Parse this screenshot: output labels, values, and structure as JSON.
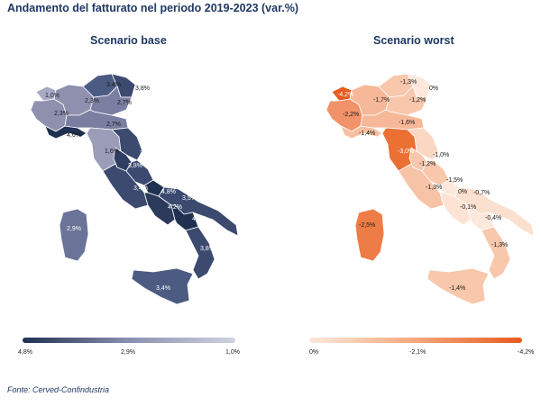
{
  "title": "Andamento del fatturato nel periodo 2019-2023 (var.%)",
  "maps": {
    "base": {
      "subtitle": "Scenario base",
      "labels": [
        "1,0%",
        "2,3%",
        "3,4%",
        "3,8%",
        "2,3%",
        "2,7%",
        "2,7%",
        "4,6%",
        "1,6%",
        "3,2%",
        "3,8%",
        "3,3%",
        "3,4%",
        "4,8%",
        "3,5%",
        "4,2%",
        "4,7%",
        "2,9%",
        "3,8%",
        "3,4%"
      ],
      "legend": {
        "min": "4,8%",
        "mid": "2,9%",
        "max": "1,0%"
      }
    },
    "worst": {
      "subtitle": "Scenario worst",
      "labels": [
        "-4,2%",
        "-1,7%",
        "-1,3%",
        "0%",
        "-1,2%",
        "-2,2%",
        "-1,6%",
        "-1,4%",
        "-3,0%",
        "-1,0%",
        "-1,2%",
        "-1,5%",
        "-1,3%",
        "0%",
        "-0,7%",
        "-0,1%",
        "-0,4%",
        "-2,5%",
        "-1,3%",
        "-1,4%"
      ],
      "legend": {
        "min": "0%",
        "mid": "-2,1%",
        "max": "-4,2%"
      }
    }
  },
  "colors": {
    "base_dark": "#1f3050",
    "base_mid": "#4c5b82",
    "base_light": "#9a9cb8",
    "worst_light": "#fde8dc",
    "worst_dark": "#e85a1e"
  },
  "source": "Fonte: Cerved-Confindustria"
}
